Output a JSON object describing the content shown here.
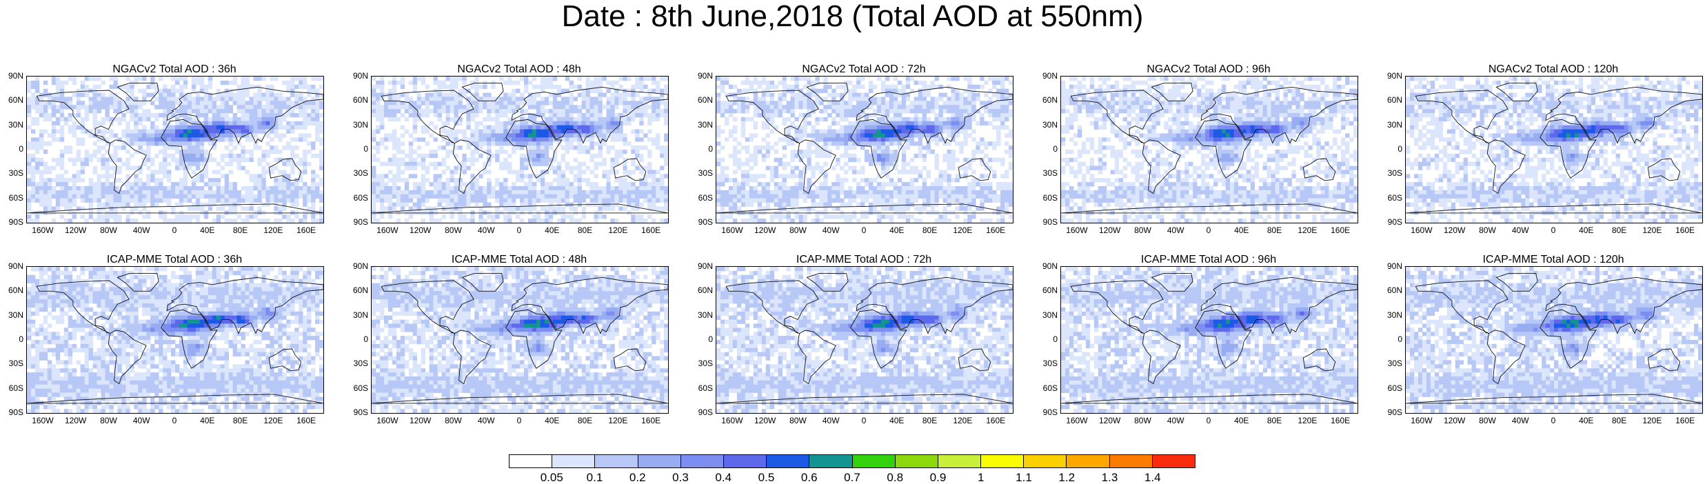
{
  "title": "Date : 8th June,2018 (Total AOD at 550nm)",
  "lat_ticks": [
    "90N",
    "60N",
    "30N",
    "0",
    "30S",
    "60S",
    "90S"
  ],
  "lon_ticks": [
    "160W",
    "120W",
    "80W",
    "40W",
    "0",
    "40E",
    "80E",
    "120E",
    "160E"
  ],
  "panels": [
    {
      "title": "NGACv2 Total AOD : 36h"
    },
    {
      "title": "NGACv2 Total AOD : 48h"
    },
    {
      "title": "NGACv2 Total AOD : 72h"
    },
    {
      "title": "NGACv2 Total AOD : 96h"
    },
    {
      "title": "NGACv2 Total AOD : 120h"
    },
    {
      "title": "ICAP-MME Total AOD : 36h"
    },
    {
      "title": "ICAP-MME Total AOD : 48h"
    },
    {
      "title": "ICAP-MME Total AOD : 72h"
    },
    {
      "title": "ICAP-MME Total AOD : 96h"
    },
    {
      "title": "ICAP-MME Total AOD : 120h"
    }
  ],
  "colorbar": {
    "labels": [
      "0.05",
      "0.1",
      "0.2",
      "0.3",
      "0.4",
      "0.5",
      "0.6",
      "0.7",
      "0.8",
      "0.9",
      "1",
      "1.1",
      "1.2",
      "1.3",
      "1.4"
    ],
    "colors": [
      "#ffffff",
      "#dbe5fb",
      "#b8c8f6",
      "#98acf2",
      "#7c8ef0",
      "#5d69ea",
      "#1c5ae6",
      "#129591",
      "#32d20e",
      "#8cd80c",
      "#c8f03a",
      "#fafc00",
      "#fcd000",
      "#fca800",
      "#fc7c00",
      "#fa2c0e"
    ]
  }
}
